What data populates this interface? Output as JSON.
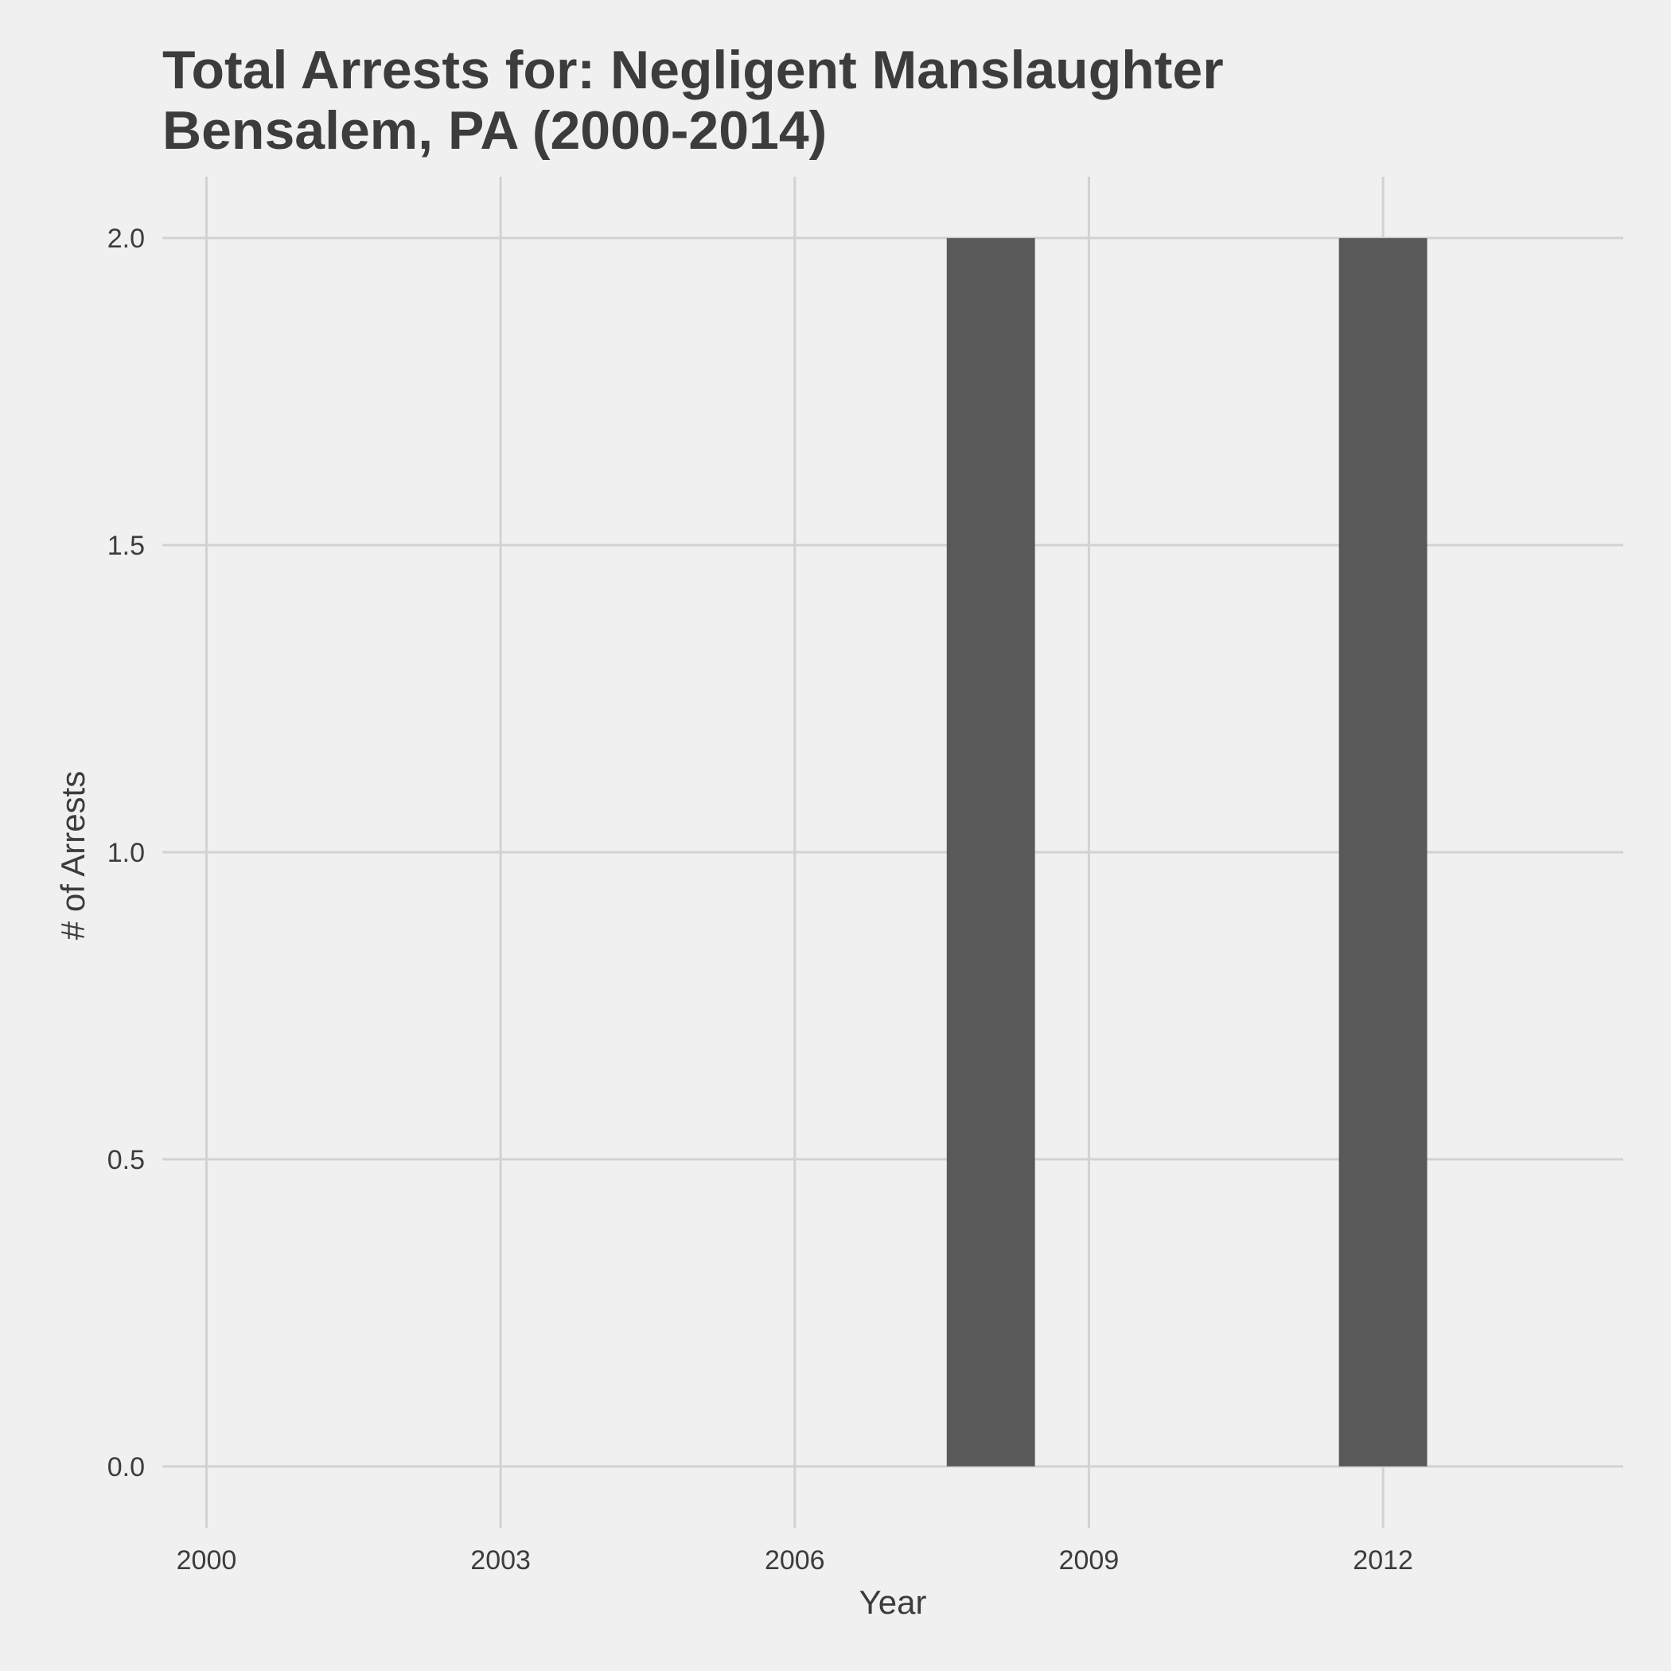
{
  "chart_data": {
    "type": "bar",
    "title": "Total Arrests for: Negligent Manslaughter",
    "subtitle": "Bensalem, PA (2000-2014)",
    "xlabel": "Year",
    "ylabel": "# of Arrests",
    "x_ticks": [
      2000,
      2003,
      2006,
      2009,
      2012
    ],
    "y_ticks": [
      "0.0",
      "0.5",
      "1.0",
      "1.5",
      "2.0"
    ],
    "xlim": [
      1999.55,
      2014.45
    ],
    "ylim": [
      -0.1,
      2.1
    ],
    "grid": true,
    "bar_color": "#595959",
    "x": [
      2000,
      2001,
      2002,
      2003,
      2004,
      2005,
      2006,
      2007,
      2008,
      2009,
      2010,
      2011,
      2012,
      2013,
      2014
    ],
    "values": [
      0,
      0,
      0,
      0,
      0,
      0,
      0,
      0,
      2,
      0,
      0,
      0,
      2,
      0,
      0
    ]
  }
}
